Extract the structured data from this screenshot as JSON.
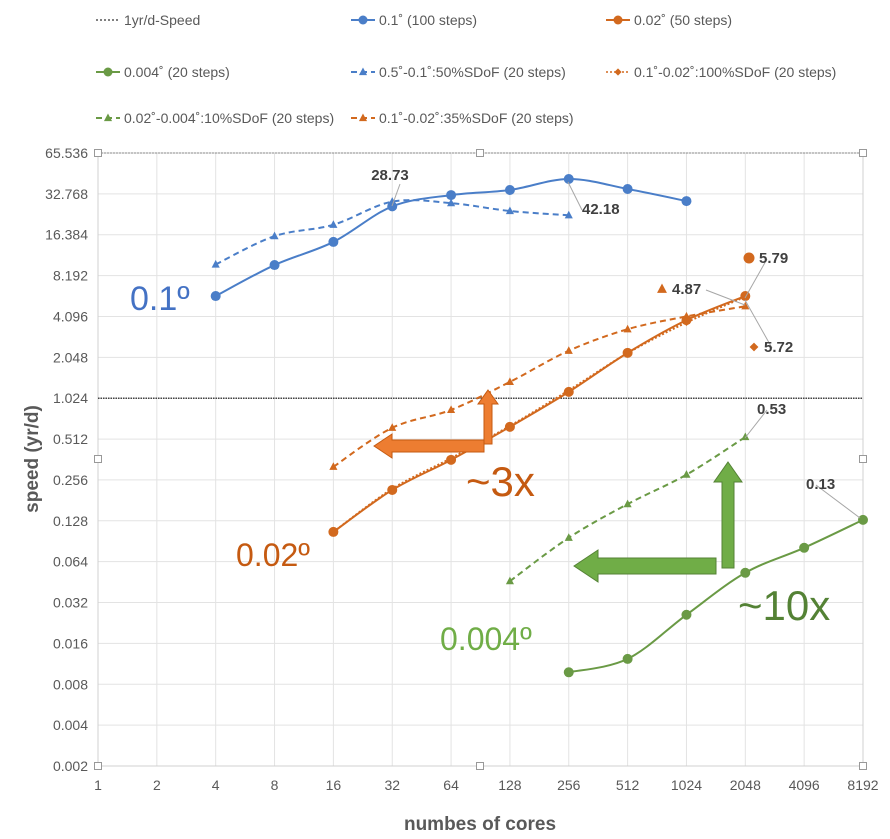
{
  "chart_data": {
    "type": "line",
    "title": "",
    "xlabel": "numbes of cores",
    "ylabel": "speed (yr/d)",
    "xscale": "log2",
    "yscale": "log2",
    "x_ticks": [
      "1",
      "2",
      "4",
      "8",
      "16",
      "32",
      "64",
      "128",
      "256",
      "512",
      "1024",
      "2048",
      "4096",
      "8192"
    ],
    "y_ticks": [
      "0.002",
      "0.004",
      "0.008",
      "0.016",
      "0.032",
      "0.064",
      "0.128",
      "0.256",
      "0.512",
      "1.024",
      "2.048",
      "4.096",
      "8.192",
      "16.384",
      "32.768",
      "65.536"
    ],
    "xlim": [
      1,
      8192
    ],
    "ylim": [
      0.002,
      65.536
    ],
    "grid": true,
    "legend_position": "top",
    "reference_line": {
      "name": "1yr/d-Speed",
      "y": 1.024
    },
    "series": [
      {
        "name": "0.1˚ (100 steps)",
        "color": "#4a7ec8",
        "style": "solid",
        "marker": "circle",
        "x": [
          4,
          8,
          16,
          32,
          64,
          128,
          256,
          512,
          1024
        ],
        "y": [
          5.79,
          9.8,
          14.5,
          26.5,
          32.1,
          35,
          42.18,
          35.6,
          29
        ]
      },
      {
        "name": "0.02˚ (50 steps)",
        "color": "#d2691e",
        "style": "solid",
        "marker": "circle",
        "x": [
          16,
          32,
          64,
          128,
          256,
          512,
          1024,
          2048
        ],
        "y": [
          0.106,
          0.216,
          0.36,
          0.63,
          1.14,
          2.21,
          3.85,
          5.79
        ]
      },
      {
        "name": "0.004˚ (20 steps)",
        "color": "#6a9a45",
        "style": "solid",
        "marker": "circle",
        "x": [
          256,
          512,
          1024,
          2048,
          4096,
          8192
        ],
        "y": [
          0.0098,
          0.0123,
          0.026,
          0.053,
          0.081,
          0.13
        ]
      },
      {
        "name": "0.5˚-0.1˚:50%SDoF (20 steps)",
        "color": "#4a7ec8",
        "style": "dashed",
        "marker": "triangle",
        "x": [
          4,
          8,
          16,
          32,
          64,
          128,
          256
        ],
        "y": [
          9.9,
          16,
          19.4,
          28.73,
          28,
          24.5,
          22.8
        ]
      },
      {
        "name": "0.1˚-0.02˚:100%SDoF (20 steps)",
        "color": "#d2691e",
        "style": "dotted",
        "marker": "diamond",
        "x": [
          16,
          32,
          64,
          128,
          256,
          512,
          1024,
          2048
        ],
        "y": [
          0.106,
          0.22,
          0.37,
          0.64,
          1.17,
          2.2,
          3.7,
          5.72
        ]
      },
      {
        "name": "0.02˚-0.004˚:10%SDoF (20 steps)",
        "color": "#6a9a45",
        "style": "dashed",
        "marker": "triangle",
        "x": [
          128,
          256,
          512,
          1024,
          2048
        ],
        "y": [
          0.046,
          0.096,
          0.17,
          0.28,
          0.53
        ]
      },
      {
        "name": "0.1˚-0.02˚:35%SDoF (20 steps)",
        "color": "#d2691e",
        "style": "dashed",
        "marker": "triangle",
        "x": [
          16,
          32,
          64,
          128,
          256,
          512,
          1024,
          2048
        ],
        "y": [
          0.32,
          0.62,
          0.84,
          1.35,
          2.29,
          3.3,
          4.1,
          4.87
        ]
      }
    ],
    "data_labels": [
      {
        "text": "28.73",
        "x": 32,
        "y": 28.73,
        "color": "#4a7ec8",
        "marker": ""
      },
      {
        "text": "42.18",
        "x": 256,
        "y": 42.18,
        "color": "#4a7ec8",
        "marker": ""
      },
      {
        "text": "5.79",
        "x": 2048,
        "y": 5.79,
        "color": "#d2691e",
        "marker": "circle"
      },
      {
        "text": "4.87",
        "x": 2048,
        "y": 4.87,
        "color": "#d2691e",
        "marker": "triangle"
      },
      {
        "text": "5.72",
        "x": 2048,
        "y": 5.72,
        "color": "#d2691e",
        "marker": "diamond"
      },
      {
        "text": "0.53",
        "x": 2048,
        "y": 0.53,
        "color": "#6a9a45",
        "marker": ""
      },
      {
        "text": "0.13",
        "x": 8192,
        "y": 0.13,
        "color": "#6a9a45",
        "marker": ""
      }
    ],
    "annotations": [
      {
        "text": "0.1º",
        "color": "#4472c4"
      },
      {
        "text": "0.02º",
        "color": "#c55a11"
      },
      {
        "text": "0.004º",
        "color": "#70ad47"
      },
      {
        "text": "~3x",
        "color": "#c55a11"
      },
      {
        "text": "~10x",
        "color": "#548235"
      }
    ]
  }
}
